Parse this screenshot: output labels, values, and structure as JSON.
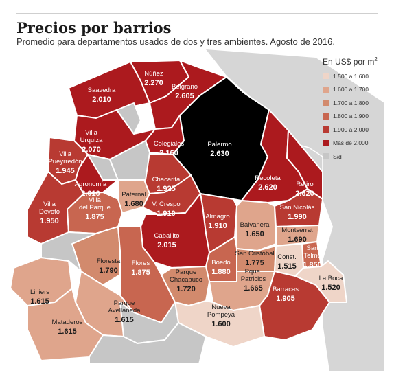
{
  "header": {
    "title": "Precios por barrios",
    "subtitle": "Promedio para departamentos usados de dos y tres ambientes. Agosto de 2016."
  },
  "legend": {
    "title": "En US$ por m",
    "unit_superscript": "2",
    "items": [
      {
        "label": "1.500 a 1.600",
        "color": "#efd5c8"
      },
      {
        "label": "1.600 a 1.700",
        "color": "#dfa58c"
      },
      {
        "label": "1.700 a 1.800",
        "color": "#d28a6d"
      },
      {
        "label": "1.800 a 1.900",
        "color": "#c86650"
      },
      {
        "label": "1.900 a 2.000",
        "color": "#b83a32"
      },
      {
        "label": "Más de 2.000",
        "color": "#ac1a1e"
      },
      {
        "label": "S/d",
        "color": "#c6c6c6"
      }
    ]
  },
  "colors": {
    "water": "#d6d6d6",
    "sin_datos": "#c6c6c6",
    "palermo": "#000000",
    "border": "#ffffff"
  },
  "neighborhoods": [
    {
      "name": "Núñez",
      "value": "2.270",
      "color": "#ac1a1e"
    },
    {
      "name": "Saavedra",
      "value": "2.010",
      "color": "#ac1a1e"
    },
    {
      "name": "Belgrano",
      "value": "2.605",
      "color": "#ac1a1e"
    },
    {
      "name": "Villa Urquiza",
      "value": "2.070",
      "color": "#ac1a1e"
    },
    {
      "name": "Colegiales",
      "value": "2.160",
      "color": "#ac1a1e"
    },
    {
      "name": "Palermo",
      "value": "2.630",
      "color": "#000000"
    },
    {
      "name": "Villa Pueyrredón",
      "value": "1.945",
      "color": "#b83a32"
    },
    {
      "name": "Agronomía",
      "value": "2.010",
      "color": "#ac1a1e"
    },
    {
      "name": "Chacarita",
      "value": "1.925",
      "color": "#b83a32"
    },
    {
      "name": "Paternal",
      "value": "1.680",
      "color": "#dfa58c"
    },
    {
      "name": "Recoleta",
      "value": "2.620",
      "color": "#ac1a1e"
    },
    {
      "name": "Retiro",
      "value": "2.620",
      "color": "#ac1a1e"
    },
    {
      "name": "Villa Devoto",
      "value": "1.950",
      "color": "#b83a32"
    },
    {
      "name": "Villa del Parque",
      "value": "1.875",
      "color": "#c86650"
    },
    {
      "name": "V. Crespo",
      "value": "1.910",
      "color": "#b83a32"
    },
    {
      "name": "Almagro",
      "value": "1.910",
      "color": "#b83a32"
    },
    {
      "name": "Balvanera",
      "value": "1.650",
      "color": "#dfa58c"
    },
    {
      "name": "San Nicolás",
      "value": "1.990",
      "color": "#b83a32"
    },
    {
      "name": "Montserrat",
      "value": "1.690",
      "color": "#dfa58c"
    },
    {
      "name": "Caballito",
      "value": "2.015",
      "color": "#ac1a1e"
    },
    {
      "name": "San Telmo",
      "value": "1.850",
      "color": "#c86650"
    },
    {
      "name": "Floresta",
      "value": "1.790",
      "color": "#d28a6d"
    },
    {
      "name": "Flores",
      "value": "1.875",
      "color": "#c86650"
    },
    {
      "name": "Boedo",
      "value": "1.880",
      "color": "#c86650"
    },
    {
      "name": "San Cristóbal",
      "value": "1.775",
      "color": "#d28a6d"
    },
    {
      "name": "Const.",
      "value": "1.515",
      "color": "#efd5c8"
    },
    {
      "name": "Liniers",
      "value": "1.615",
      "color": "#dfa58c"
    },
    {
      "name": "Parque Chacabuco",
      "value": "1.720",
      "color": "#d28a6d"
    },
    {
      "name": "Pque. Patricios",
      "value": "1.665",
      "color": "#dfa58c"
    },
    {
      "name": "La Boca",
      "value": "1.520",
      "color": "#efd5c8"
    },
    {
      "name": "Parque Avellaneda",
      "value": "1.615",
      "color": "#dfa58c"
    },
    {
      "name": "Barracas",
      "value": "1.905",
      "color": "#b83a32"
    },
    {
      "name": "Mataderos",
      "value": "1.615",
      "color": "#dfa58c"
    },
    {
      "name": "Nueva Pompeya",
      "value": "1.600",
      "color": "#efd5c8"
    }
  ]
}
